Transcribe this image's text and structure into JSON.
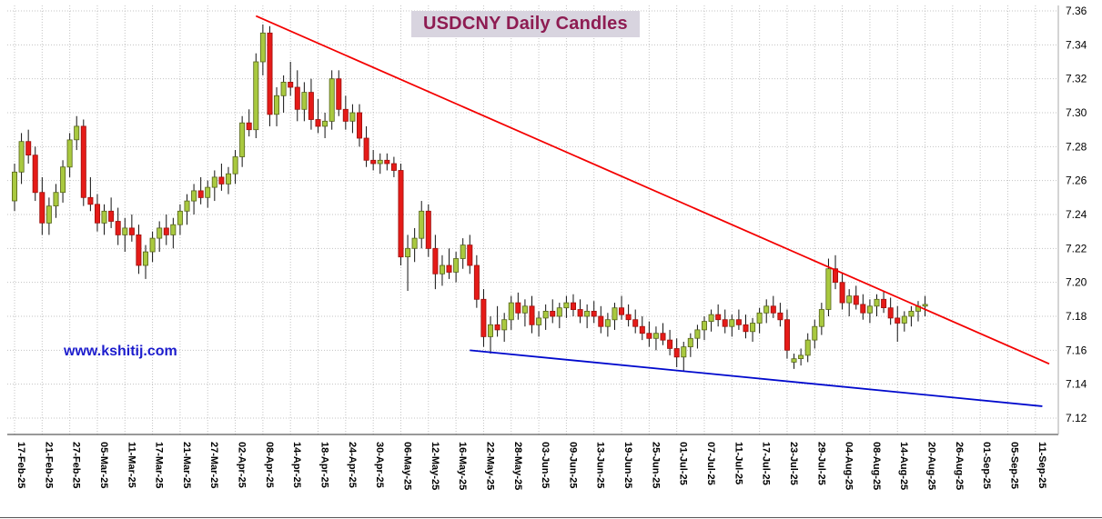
{
  "title": {
    "text": "USDCNY Daily Candles"
  },
  "watermark": {
    "text": "www.kshitij.com"
  },
  "chart_data": {
    "type": "candlestick",
    "title": "USDCNY Daily Candles",
    "instrument": "USDCNY",
    "timeframe": "Daily",
    "grid": {
      "dotted": true,
      "color": "#c3c3c3"
    },
    "colors": {
      "up_fill": "#a9c93f",
      "up_border": "#55641a",
      "down_fill": "#e51b18",
      "down_border": "#9c0f0c",
      "wick": "#111111",
      "red_trendline": "#f40000",
      "blue_trendline": "#0009cd",
      "title_color": "#8e1c52",
      "title_bg": "#d8d4df",
      "watermark_color": "#1c1ccd",
      "axis_text": "#000000"
    },
    "y_axis": {
      "side": "right",
      "min": 7.12,
      "max": 7.36,
      "tick_step": 0.02,
      "tick_labels": [
        "7.36",
        "7.34",
        "7.32",
        "7.30",
        "7.28",
        "7.26",
        "7.24",
        "7.22",
        "7.20",
        "7.18",
        "7.16",
        "7.14",
        "7.12"
      ]
    },
    "x_axis": {
      "days_per_tick": 4,
      "total_days": 149,
      "tick_labels": [
        "17-Feb-25",
        "21-Feb-25",
        "27-Feb-25",
        "05-Mar-25",
        "11-Mar-25",
        "17-Mar-25",
        "21-Mar-25",
        "27-Mar-25",
        "02-Apr-25",
        "08-Apr-25",
        "14-Apr-25",
        "18-Apr-25",
        "24-Apr-25",
        "30-Apr-25",
        "06-May-25",
        "12-May-25",
        "16-May-25",
        "22-May-25",
        "28-May-25",
        "03-Jun-25",
        "09-Jun-25",
        "13-Jun-25",
        "19-Jun-25",
        "25-Jun-25",
        "01-Jul-25",
        "07-Jul-25",
        "11-Jul-25",
        "17-Jul-25",
        "23-Jul-25",
        "29-Jul-25",
        "04-Aug-25",
        "08-Aug-25",
        "14-Aug-25",
        "20-Aug-25",
        "26-Aug-25",
        "01-Sep-25",
        "05-Sep-25",
        "11-Sep-25"
      ]
    },
    "candles": {
      "format": [
        "open",
        "high",
        "low",
        "close"
      ],
      "first_day_label": "17-Feb-25",
      "last_day_label": "20-Aug-25",
      "ohlc": [
        [
          7.248,
          7.27,
          7.242,
          7.265
        ],
        [
          7.265,
          7.288,
          7.258,
          7.283
        ],
        [
          7.283,
          7.29,
          7.27,
          7.275
        ],
        [
          7.275,
          7.28,
          7.248,
          7.253
        ],
        [
          7.253,
          7.262,
          7.228,
          7.235
        ],
        [
          7.235,
          7.25,
          7.228,
          7.245
        ],
        [
          7.245,
          7.258,
          7.238,
          7.253
        ],
        [
          7.253,
          7.272,
          7.247,
          7.268
        ],
        [
          7.268,
          7.288,
          7.262,
          7.284
        ],
        [
          7.284,
          7.298,
          7.278,
          7.292
        ],
        [
          7.292,
          7.296,
          7.245,
          7.25
        ],
        [
          7.25,
          7.262,
          7.242,
          7.246
        ],
        [
          7.246,
          7.252,
          7.23,
          7.235
        ],
        [
          7.235,
          7.246,
          7.228,
          7.242
        ],
        [
          7.242,
          7.25,
          7.232,
          7.236
        ],
        [
          7.236,
          7.244,
          7.222,
          7.228
        ],
        [
          7.228,
          7.238,
          7.218,
          7.232
        ],
        [
          7.232,
          7.24,
          7.224,
          7.228
        ],
        [
          7.228,
          7.234,
          7.205,
          7.21
        ],
        [
          7.21,
          7.222,
          7.202,
          7.218
        ],
        [
          7.218,
          7.23,
          7.212,
          7.226
        ],
        [
          7.226,
          7.236,
          7.218,
          7.232
        ],
        [
          7.232,
          7.24,
          7.222,
          7.228
        ],
        [
          7.228,
          7.238,
          7.22,
          7.234
        ],
        [
          7.234,
          7.246,
          7.228,
          7.242
        ],
        [
          7.242,
          7.252,
          7.234,
          7.248
        ],
        [
          7.248,
          7.258,
          7.24,
          7.254
        ],
        [
          7.254,
          7.262,
          7.246,
          7.25
        ],
        [
          7.25,
          7.26,
          7.244,
          7.256
        ],
        [
          7.256,
          7.266,
          7.248,
          7.262
        ],
        [
          7.262,
          7.27,
          7.254,
          7.258
        ],
        [
          7.258,
          7.268,
          7.252,
          7.264
        ],
        [
          7.264,
          7.278,
          7.258,
          7.274
        ],
        [
          7.274,
          7.298,
          7.268,
          7.294
        ],
        [
          7.294,
          7.302,
          7.286,
          7.29
        ],
        [
          7.29,
          7.335,
          7.285,
          7.33
        ],
        [
          7.33,
          7.352,
          7.322,
          7.347
        ],
        [
          7.347,
          7.351,
          7.292,
          7.299
        ],
        [
          7.299,
          7.315,
          7.292,
          7.31
        ],
        [
          7.31,
          7.322,
          7.3,
          7.318
        ],
        [
          7.318,
          7.33,
          7.31,
          7.315
        ],
        [
          7.315,
          7.325,
          7.295,
          7.302
        ],
        [
          7.302,
          7.318,
          7.295,
          7.312
        ],
        [
          7.312,
          7.32,
          7.29,
          7.296
        ],
        [
          7.296,
          7.308,
          7.288,
          7.292
        ],
        [
          7.292,
          7.3,
          7.285,
          7.295
        ],
        [
          7.295,
          7.325,
          7.29,
          7.32
        ],
        [
          7.32,
          7.325,
          7.298,
          7.302
        ],
        [
          7.302,
          7.31,
          7.29,
          7.295
        ],
        [
          7.295,
          7.305,
          7.288,
          7.3
        ],
        [
          7.3,
          7.305,
          7.28,
          7.285
        ],
        [
          7.285,
          7.292,
          7.268,
          7.272
        ],
        [
          7.272,
          7.278,
          7.266,
          7.27
        ],
        [
          7.27,
          7.276,
          7.264,
          7.272
        ],
        [
          7.272,
          7.276,
          7.266,
          7.27
        ],
        [
          7.27,
          7.274,
          7.262,
          7.266
        ],
        [
          7.266,
          7.27,
          7.21,
          7.215
        ],
        [
          7.215,
          7.228,
          7.195,
          7.22
        ],
        [
          7.22,
          7.232,
          7.212,
          7.226
        ],
        [
          7.226,
          7.248,
          7.22,
          7.242
        ],
        [
          7.242,
          7.246,
          7.215,
          7.22
        ],
        [
          7.22,
          7.228,
          7.196,
          7.205
        ],
        [
          7.205,
          7.216,
          7.198,
          7.21
        ],
        [
          7.21,
          7.22,
          7.202,
          7.206
        ],
        [
          7.206,
          7.218,
          7.2,
          7.214
        ],
        [
          7.214,
          7.226,
          7.208,
          7.222
        ],
        [
          7.222,
          7.228,
          7.205,
          7.21
        ],
        [
          7.21,
          7.216,
          7.185,
          7.19
        ],
        [
          7.19,
          7.196,
          7.162,
          7.168
        ],
        [
          7.168,
          7.18,
          7.158,
          7.175
        ],
        [
          7.175,
          7.186,
          7.168,
          7.172
        ],
        [
          7.172,
          7.182,
          7.165,
          7.178
        ],
        [
          7.178,
          7.192,
          7.172,
          7.188
        ],
        [
          7.188,
          7.194,
          7.178,
          7.182
        ],
        [
          7.182,
          7.19,
          7.174,
          7.186
        ],
        [
          7.186,
          7.192,
          7.17,
          7.175
        ],
        [
          7.175,
          7.183,
          7.168,
          7.179
        ],
        [
          7.179,
          7.187,
          7.172,
          7.183
        ],
        [
          7.183,
          7.19,
          7.176,
          7.18
        ],
        [
          7.18,
          7.188,
          7.173,
          7.185
        ],
        [
          7.185,
          7.192,
          7.179,
          7.188
        ],
        [
          7.188,
          7.193,
          7.18,
          7.184
        ],
        [
          7.184,
          7.19,
          7.176,
          7.18
        ],
        [
          7.18,
          7.187,
          7.173,
          7.183
        ],
        [
          7.183,
          7.189,
          7.176,
          7.18
        ],
        [
          7.18,
          7.186,
          7.17,
          7.174
        ],
        [
          7.174,
          7.182,
          7.168,
          7.178
        ],
        [
          7.178,
          7.188,
          7.172,
          7.185
        ],
        [
          7.185,
          7.192,
          7.178,
          7.181
        ],
        [
          7.181,
          7.187,
          7.174,
          7.178
        ],
        [
          7.178,
          7.184,
          7.17,
          7.174
        ],
        [
          7.174,
          7.18,
          7.166,
          7.17
        ],
        [
          7.17,
          7.177,
          7.162,
          7.167
        ],
        [
          7.167,
          7.174,
          7.16,
          7.17
        ],
        [
          7.17,
          7.176,
          7.163,
          7.166
        ],
        [
          7.166,
          7.172,
          7.157,
          7.161
        ],
        [
          7.161,
          7.167,
          7.15,
          7.156
        ],
        [
          7.156,
          7.165,
          7.148,
          7.162
        ],
        [
          7.162,
          7.17,
          7.156,
          7.167
        ],
        [
          7.167,
          7.175,
          7.161,
          7.172
        ],
        [
          7.172,
          7.18,
          7.166,
          7.177
        ],
        [
          7.177,
          7.184,
          7.171,
          7.181
        ],
        [
          7.181,
          7.187,
          7.174,
          7.178
        ],
        [
          7.178,
          7.184,
          7.17,
          7.174
        ],
        [
          7.174,
          7.181,
          7.168,
          7.178
        ],
        [
          7.178,
          7.184,
          7.172,
          7.175
        ],
        [
          7.175,
          7.181,
          7.167,
          7.171
        ],
        [
          7.171,
          7.179,
          7.165,
          7.176
        ],
        [
          7.176,
          7.185,
          7.17,
          7.182
        ],
        [
          7.182,
          7.19,
          7.176,
          7.186
        ],
        [
          7.186,
          7.192,
          7.179,
          7.182
        ],
        [
          7.182,
          7.188,
          7.174,
          7.178
        ],
        [
          7.178,
          7.184,
          7.155,
          7.16
        ],
        [
          7.153,
          7.158,
          7.149,
          7.155
        ],
        [
          7.155,
          7.161,
          7.151,
          7.157
        ],
        [
          7.157,
          7.17,
          7.153,
          7.166
        ],
        [
          7.166,
          7.178,
          7.161,
          7.174
        ],
        [
          7.174,
          7.188,
          7.169,
          7.184
        ],
        [
          7.184,
          7.214,
          7.18,
          7.208
        ],
        [
          7.208,
          7.216,
          7.196,
          7.2
        ],
        [
          7.2,
          7.206,
          7.184,
          7.188
        ],
        [
          7.188,
          7.196,
          7.18,
          7.192
        ],
        [
          7.192,
          7.198,
          7.184,
          7.187
        ],
        [
          7.187,
          7.193,
          7.178,
          7.182
        ],
        [
          7.182,
          7.19,
          7.176,
          7.186
        ],
        [
          7.186,
          7.193,
          7.18,
          7.19
        ],
        [
          7.19,
          7.195,
          7.182,
          7.185
        ],
        [
          7.185,
          7.191,
          7.175,
          7.179
        ],
        [
          7.179,
          7.186,
          7.165,
          7.176
        ],
        [
          7.176,
          7.183,
          7.171,
          7.18
        ],
        [
          7.18,
          7.186,
          7.174,
          7.183
        ],
        [
          7.183,
          7.189,
          7.177,
          7.186
        ],
        [
          7.186,
          7.192,
          7.18,
          7.187
        ]
      ]
    },
    "trendlines": [
      {
        "name": "red-resistance-trendline",
        "color": "#f40000",
        "from_day": 35,
        "from_price": 7.357,
        "to_day": 150,
        "to_price": 7.152
      },
      {
        "name": "blue-support-trendline",
        "color": "#0009cd",
        "from_day": 66,
        "from_price": 7.16,
        "to_day": 149,
        "to_price": 7.127
      }
    ]
  }
}
